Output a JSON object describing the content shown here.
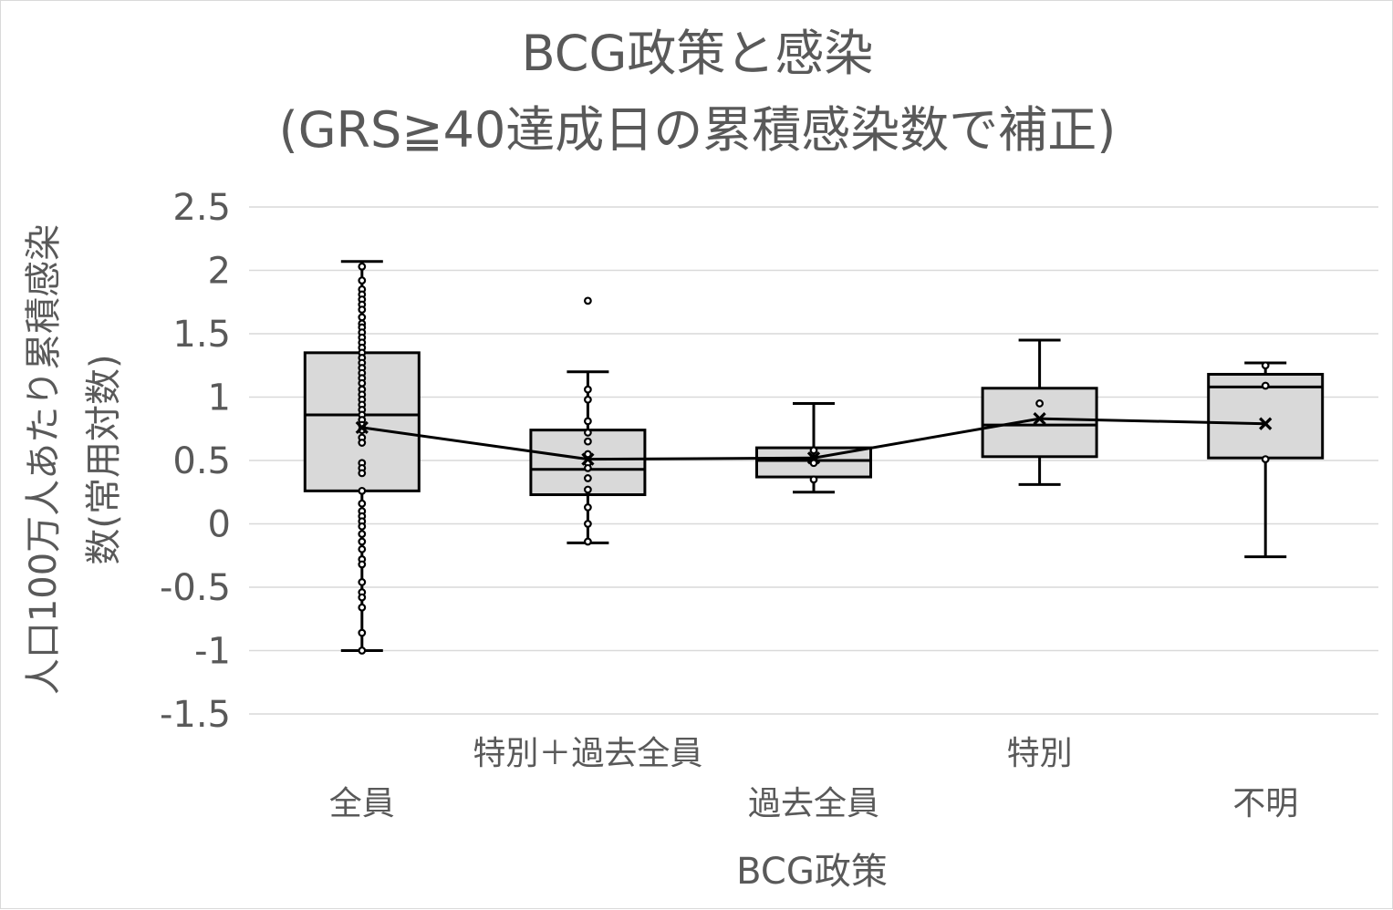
{
  "chart_data": {
    "type": "box",
    "title": "BCG政策と感染",
    "subtitle": "(GRS≧40達成日の累積感染数で補正)",
    "xlabel": "BCG政策",
    "ylabel": "人口100万人あたり累積感染数(常用対数)",
    "ylim": [
      -1.5,
      2.5
    ],
    "yticks": [
      "2.5",
      "2",
      "1.5",
      "1",
      "0.5",
      "0",
      "-0.5",
      "-1",
      "-1.5"
    ],
    "grid": true,
    "categories": [
      "全員",
      "特別＋過去全員",
      "過去全員",
      "特別",
      "不明"
    ],
    "boxes": [
      {
        "category": "全員",
        "min": -1.0,
        "q1": 0.26,
        "median": 0.86,
        "q3": 1.35,
        "max": 2.07,
        "mean": 0.76,
        "points": [
          2.03,
          1.92,
          1.85,
          1.81,
          1.77,
          1.73,
          1.69,
          1.63,
          1.58,
          1.55,
          1.51,
          1.47,
          1.43,
          1.39,
          1.35,
          1.31,
          1.27,
          1.23,
          1.19,
          1.15,
          1.11,
          1.06,
          1.02,
          0.98,
          0.94,
          0.9,
          0.86,
          0.82,
          0.78,
          0.74,
          0.68,
          0.64,
          0.48,
          0.44,
          0.4,
          0.26,
          0.16,
          0.1,
          0.06,
          0.02,
          -0.02,
          -0.08,
          -0.14,
          -0.2,
          -0.28,
          -0.32,
          -0.46,
          -0.54,
          -0.58,
          -0.66,
          -0.86,
          -1.0
        ]
      },
      {
        "category": "特別＋過去全員",
        "min": -0.15,
        "q1": 0.23,
        "median": 0.43,
        "q3": 0.74,
        "max": 1.2,
        "mean": 0.51,
        "points": [
          1.76,
          1.06,
          0.98,
          0.81,
          0.72,
          0.65,
          0.55,
          0.48,
          0.44,
          0.36,
          0.27,
          0.13,
          0.0,
          -0.14
        ]
      },
      {
        "category": "過去全員",
        "min": 0.25,
        "q1": 0.37,
        "median": 0.5,
        "q3": 0.6,
        "max": 0.95,
        "mean": 0.52,
        "points": [
          0.58,
          0.52,
          0.48,
          0.35
        ]
      },
      {
        "category": "特別",
        "min": 0.31,
        "q1": 0.53,
        "median": 0.78,
        "q3": 1.07,
        "max": 1.45,
        "mean": 0.83,
        "points": [
          0.95
        ]
      },
      {
        "category": "不明",
        "min": -0.26,
        "q1": 0.52,
        "median": 1.08,
        "q3": 1.18,
        "max": 1.27,
        "mean": 0.79,
        "points": [
          1.25,
          1.09,
          0.51
        ]
      }
    ],
    "mean_line": [
      0.76,
      0.51,
      0.52,
      0.83,
      0.79
    ],
    "colors": {
      "box_fill": "#d9d9d9",
      "stroke": "#000000",
      "grid": "#d9d9d9",
      "text": "#595959"
    }
  }
}
